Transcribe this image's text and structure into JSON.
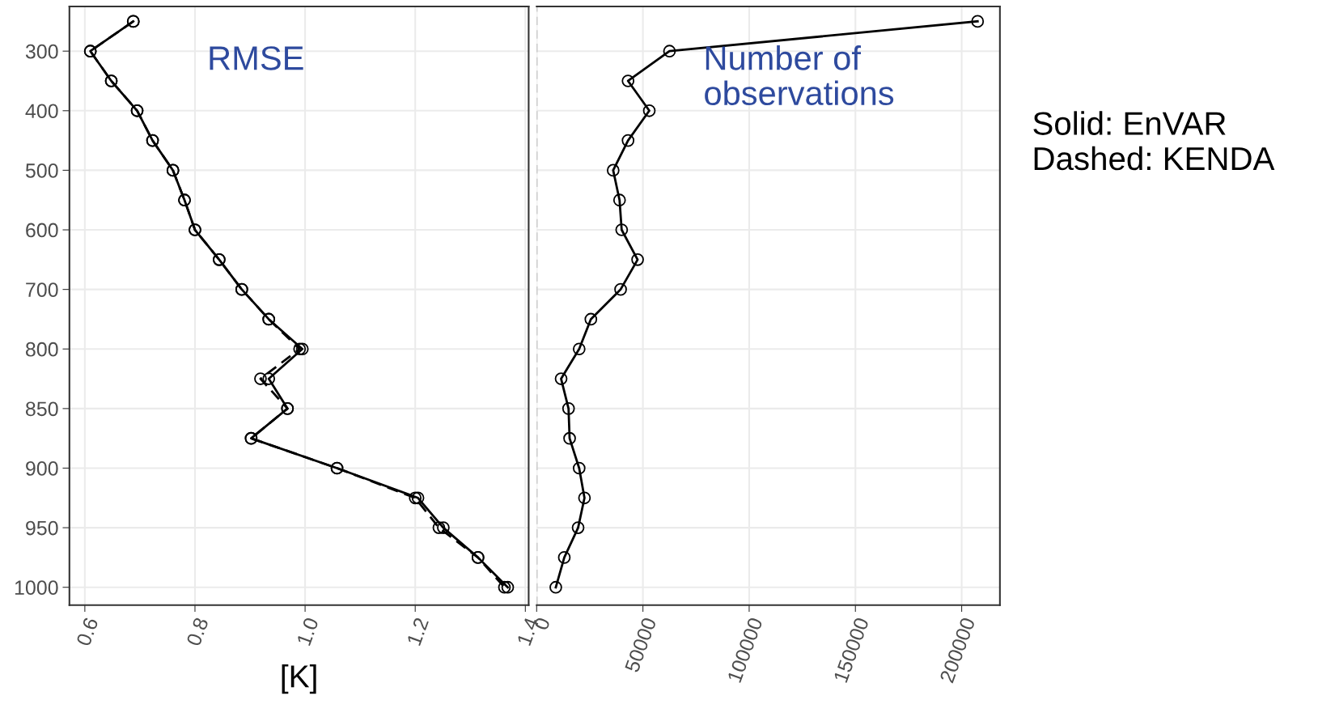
{
  "chart_data": [
    {
      "type": "line",
      "orientation": "horizontal",
      "categories": [
        null,
        "300",
        null,
        "400",
        null,
        "500",
        null,
        "600",
        null,
        "700",
        null,
        "800",
        null,
        "850",
        null,
        "900",
        null,
        "950",
        null,
        "1000"
      ],
      "series": [
        {
          "color": "#000000",
          "line_style": "solid",
          "values": [
            0.688,
            0.61,
            0.648,
            0.695,
            0.723,
            0.76,
            0.781,
            0.8,
            0.844,
            0.885,
            0.934,
            0.995,
            0.934,
            0.968,
            0.902,
            1.058,
            1.205,
            1.251,
            1.314,
            1.368
          ]
        },
        {
          "color": "#000000",
          "line_style": "dashed",
          "values": [
            0.688,
            0.61,
            0.648,
            0.695,
            0.723,
            0.76,
            0.781,
            0.8,
            0.844,
            0.885,
            0.934,
            0.99,
            0.919,
            0.968,
            0.902,
            1.058,
            1.2,
            1.243,
            1.314,
            1.362
          ]
        }
      ],
      "xlim": [
        0.572,
        1.406
      ],
      "xticks": [
        0.6,
        0.8,
        {
          "value": 1.0,
          "label": "1.0"
        },
        1.2,
        1.4
      ],
      "xlabel": "[K]",
      "grid": true,
      "marker": "circle",
      "annotations": [
        "RMSE"
      ]
    },
    {
      "type": "line",
      "orientation": "horizontal",
      "categories": [
        null,
        "300",
        null,
        "400",
        null,
        "500",
        null,
        "600",
        null,
        "700",
        null,
        "800",
        null,
        "850",
        null,
        "900",
        null,
        "950",
        null,
        "1000"
      ],
      "series": [
        {
          "color": "#000000",
          "line_style": "solid",
          "values": [
            207500,
            62500,
            43000,
            53000,
            43000,
            36000,
            39000,
            40000,
            47500,
            39500,
            25500,
            20000,
            11500,
            15000,
            15500,
            20000,
            22500,
            19500,
            13000,
            9000
          ]
        }
      ],
      "xlim": [
        0,
        218000
      ],
      "xticks": [
        0,
        50000,
        100000,
        150000,
        200000
      ],
      "tick_labels": "x",
      "grid": true,
      "marker": "circle",
      "ref_lines": [
        {
          "axis": "x",
          "value": 0,
          "color": "#bbbbbb",
          "line_style": "dashed"
        }
      ],
      "annotations": [
        "Number of\nobservations",
        "Solid: EnVAR\nDashed: KENDA"
      ]
    }
  ]
}
